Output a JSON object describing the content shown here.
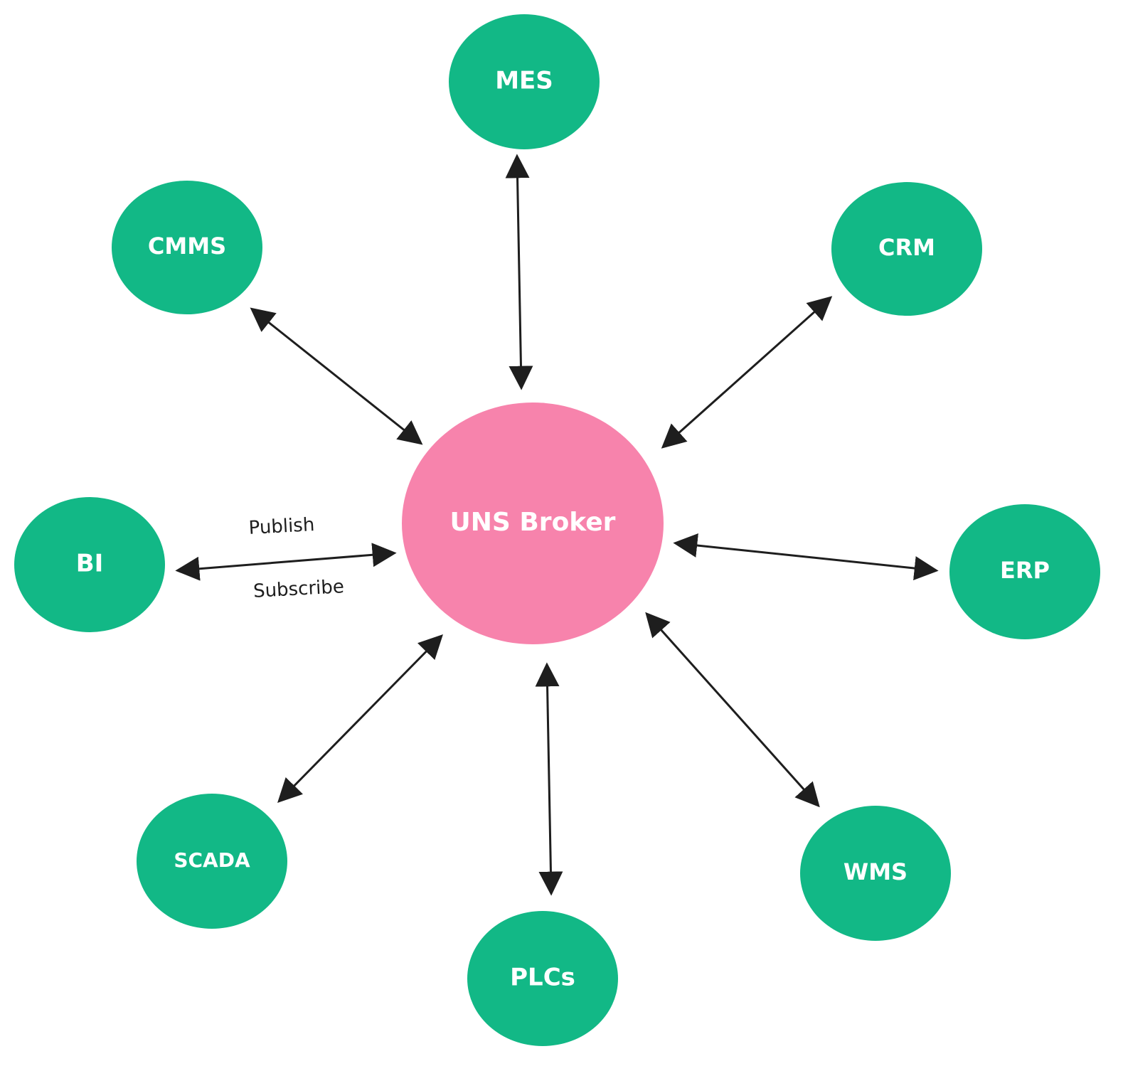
{
  "colors": {
    "node_fill": "#12b886",
    "broker_fill": "#f783ac",
    "line": "#1e1e1e",
    "text_light": "#ffffff",
    "text_dark": "#1e1e1e",
    "background": "#ffffff"
  },
  "broker": {
    "label": "UNS Broker"
  },
  "nodes": [
    {
      "id": "mes",
      "label": "MES"
    },
    {
      "id": "cmms",
      "label": "CMMS"
    },
    {
      "id": "crm",
      "label": "CRM"
    },
    {
      "id": "bi",
      "label": "BI"
    },
    {
      "id": "erp",
      "label": "ERP"
    },
    {
      "id": "scada",
      "label": "SCADA"
    },
    {
      "id": "wms",
      "label": "WMS"
    },
    {
      "id": "plcs",
      "label": "PLCs"
    }
  ],
  "edges": [
    {
      "from": "mes",
      "to": "broker",
      "direction": "bidirectional"
    },
    {
      "from": "cmms",
      "to": "broker",
      "direction": "bidirectional"
    },
    {
      "from": "crm",
      "to": "broker",
      "direction": "bidirectional"
    },
    {
      "from": "bi",
      "to": "broker",
      "direction": "bidirectional"
    },
    {
      "from": "erp",
      "to": "broker",
      "direction": "bidirectional"
    },
    {
      "from": "scada",
      "to": "broker",
      "direction": "bidirectional"
    },
    {
      "from": "wms",
      "to": "broker",
      "direction": "bidirectional"
    },
    {
      "from": "plcs",
      "to": "broker",
      "direction": "bidirectional"
    }
  ],
  "edge_labels": {
    "publish": "Publish",
    "subscribe": "Subscribe"
  }
}
